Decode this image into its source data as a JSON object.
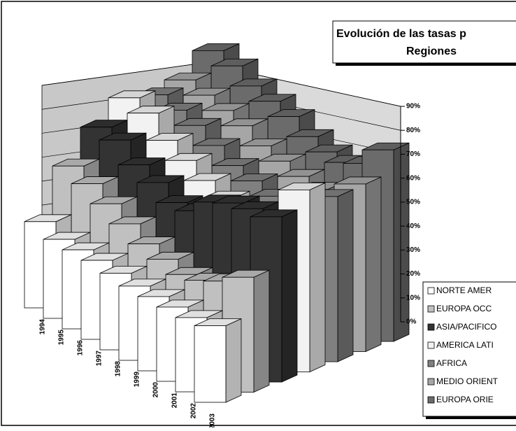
{
  "chart_data": {
    "type": "bar3d",
    "title_lines": [
      "Evolución de las tasas p",
      "Regiones"
    ],
    "categories": [
      "1994",
      "1995",
      "1996",
      "1997",
      "1998",
      "1999",
      "2000",
      "2001",
      "2002",
      "2003"
    ],
    "series": [
      {
        "name": "NORTE AMER",
        "color": "#ffffff",
        "values": [
          36,
          33,
          33,
          33,
          32,
          31,
          31,
          31,
          31,
          32
        ]
      },
      {
        "name": "EUROPA OCC",
        "color": "#c0c0c0",
        "values": [
          55,
          52,
          48,
          44,
          40,
          38,
          36,
          38,
          42,
          48
        ]
      },
      {
        "name": "ASIA/PACIFICO",
        "color": "#333333",
        "values": [
          67,
          66,
          60,
          57,
          53,
          54,
          62,
          66,
          68,
          69
        ]
      },
      {
        "name": "AMERICA LATI",
        "color": "#f2f2f2",
        "values": [
          75,
          73,
          66,
          62,
          58,
          55,
          54,
          55,
          56,
          76
        ]
      },
      {
        "name": "AFRICA",
        "color": "#808080",
        "values": [
          72,
          70,
          68,
          64,
          60,
          58,
          56,
          55,
          57,
          69
        ]
      },
      {
        "name": "MEDIO ORIENT",
        "color": "#a6a6a6",
        "values": [
          74,
          72,
          70,
          68,
          64,
          62,
          60,
          59,
          60,
          70
        ]
      },
      {
        "name": "EUROPA ORIE",
        "color": "#6b6b6b",
        "values": [
          82,
          80,
          76,
          74,
          72,
          68,
          66,
          66,
          70,
          80
        ]
      }
    ],
    "ylim": [
      0,
      90
    ],
    "yticks": [
      {
        "value": 0,
        "label": "0%"
      },
      {
        "value": 10,
        "label": "10%"
      },
      {
        "value": 20,
        "label": "20%"
      },
      {
        "value": 30,
        "label": "30%"
      },
      {
        "value": 40,
        "label": "40%"
      },
      {
        "value": 50,
        "label": "50%"
      },
      {
        "value": 60,
        "label": "60%"
      },
      {
        "value": 70,
        "label": "70%"
      },
      {
        "value": 80,
        "label": "80%"
      },
      {
        "value": 90,
        "label": "90%"
      }
    ],
    "grid": true
  }
}
